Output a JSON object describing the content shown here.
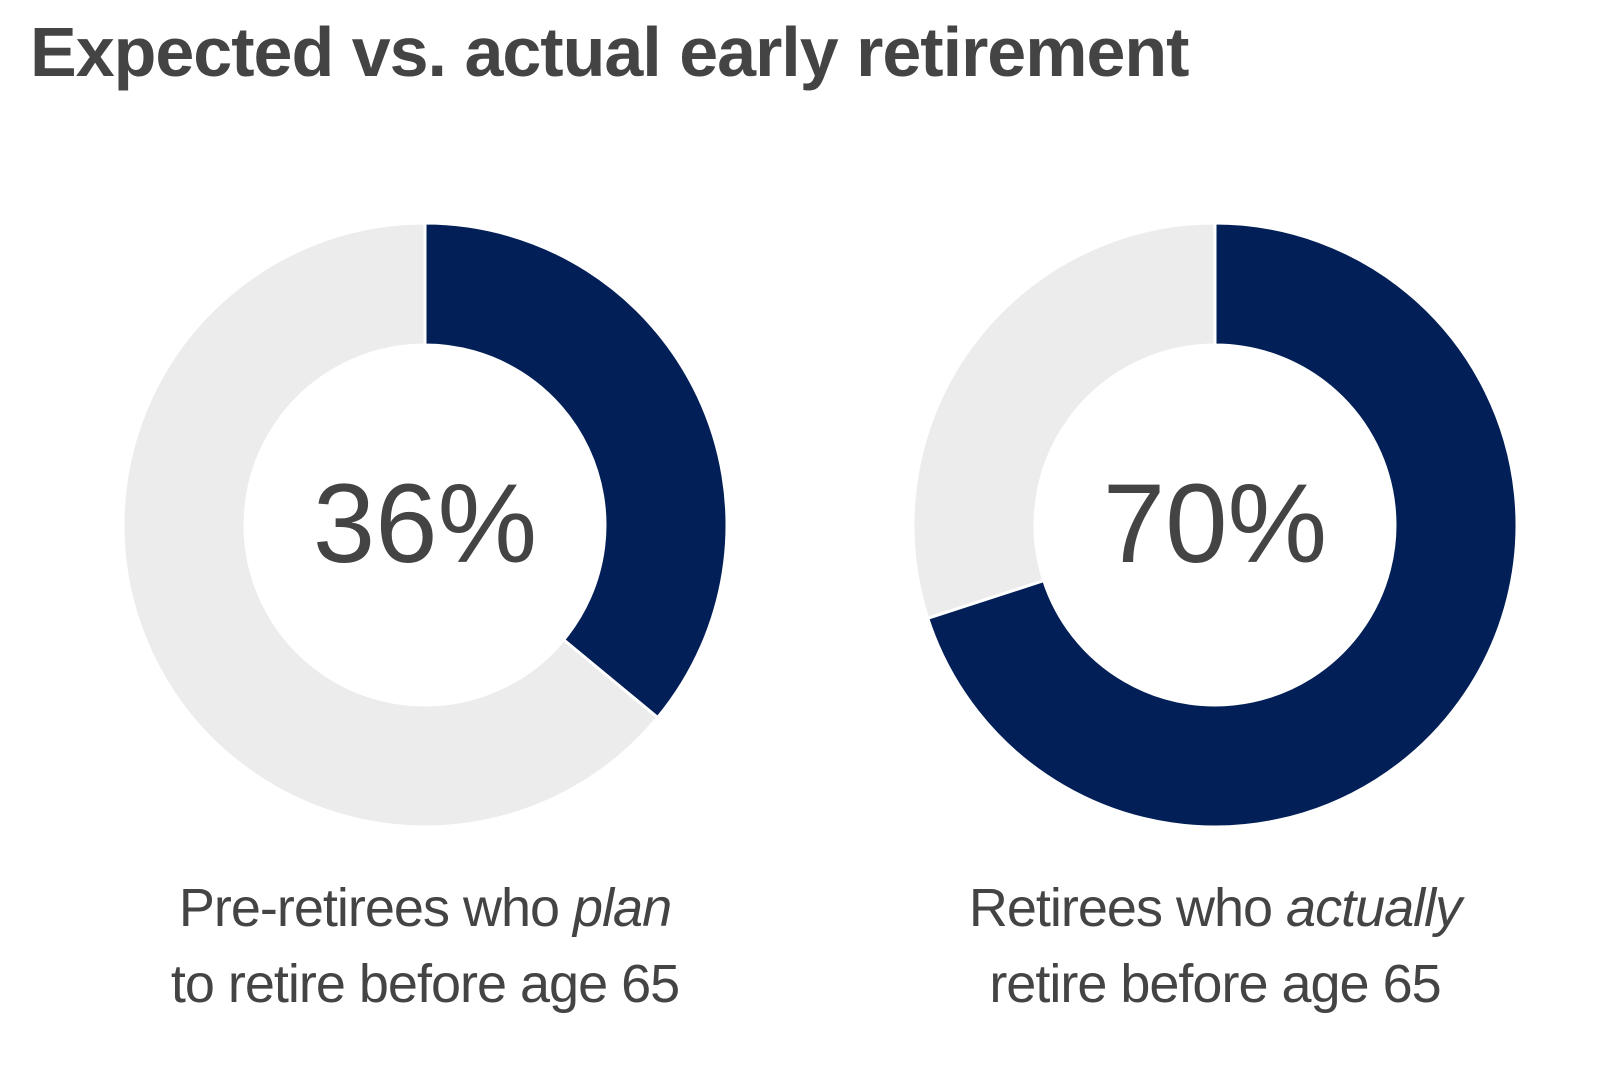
{
  "title": "Expected vs. actual early retirement",
  "colors": {
    "filled": "#021f57",
    "remainder": "#ececec",
    "text": "#444444"
  },
  "chart_data": [
    {
      "type": "pie",
      "variant": "donut",
      "value": 36,
      "label": "36%",
      "caption": {
        "pre": "Pre-retirees who ",
        "emphasis": "plan",
        "post": "to retire before age 65"
      }
    },
    {
      "type": "pie",
      "variant": "donut",
      "value": 70,
      "label": "70%",
      "caption": {
        "pre": "Retirees who ",
        "emphasis": "actually",
        "post": "retire before age 65"
      }
    }
  ]
}
